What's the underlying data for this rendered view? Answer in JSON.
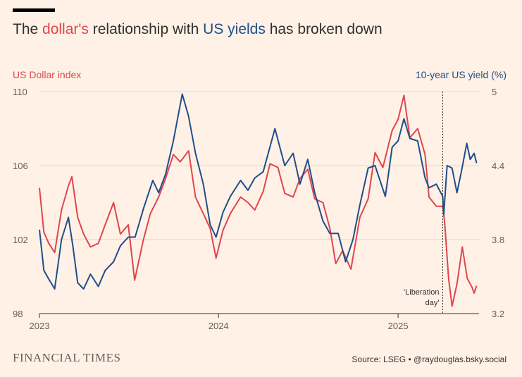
{
  "header": {
    "title_pre": "The ",
    "title_dollar": "dollar's",
    "title_mid": " relationship with ",
    "title_us": "US yields",
    "title_post": " has broken down"
  },
  "footer": {
    "brand": "FINANCIAL TIMES",
    "source": "Source: LSEG • @raydouglas.bsky.social"
  },
  "colors": {
    "dollar": "#e0454f",
    "yield": "#1f4e8c",
    "background": "#fff1e5",
    "grid": "#e2d7cc",
    "axis": "#33302e"
  },
  "chart_data": {
    "type": "line",
    "left_axis": {
      "label": "US Dollar index",
      "range": [
        98,
        110
      ],
      "ticks": [
        "98",
        "102",
        "106",
        "110"
      ]
    },
    "right_axis": {
      "label": "10-year US yield (%)",
      "range": [
        3.2,
        5.0
      ],
      "ticks": [
        "3.2",
        "3.8",
        "4.4",
        "5"
      ]
    },
    "x_axis": {
      "range": [
        "2023-01-01",
        "2025-06-15"
      ],
      "ticks": [
        "2023",
        "2024",
        "2025"
      ]
    },
    "grid": true,
    "annotation": {
      "date": "2025-04-02",
      "text_line1": "'Liberation",
      "text_line2": "day'"
    },
    "series": [
      {
        "name": "US Dollar index",
        "axis": "left",
        "points": [
          [
            "2023-01-01",
            104.8
          ],
          [
            "2023-01-10",
            102.4
          ],
          [
            "2023-01-20",
            101.8
          ],
          [
            "2023-02-01",
            101.3
          ],
          [
            "2023-02-15",
            103.6
          ],
          [
            "2023-03-01",
            104.9
          ],
          [
            "2023-03-08",
            105.4
          ],
          [
            "2023-03-20",
            103.2
          ],
          [
            "2023-04-01",
            102.3
          ],
          [
            "2023-04-15",
            101.6
          ],
          [
            "2023-05-01",
            101.8
          ],
          [
            "2023-05-15",
            102.8
          ],
          [
            "2023-06-01",
            104.0
          ],
          [
            "2023-06-15",
            102.3
          ],
          [
            "2023-07-01",
            102.8
          ],
          [
            "2023-07-14",
            99.8
          ],
          [
            "2023-08-01",
            102.0
          ],
          [
            "2023-08-15",
            103.4
          ],
          [
            "2023-09-01",
            104.3
          ],
          [
            "2023-09-15",
            105.3
          ],
          [
            "2023-10-01",
            106.6
          ],
          [
            "2023-10-15",
            106.2
          ],
          [
            "2023-11-01",
            106.8
          ],
          [
            "2023-11-15",
            104.3
          ],
          [
            "2023-12-01",
            103.4
          ],
          [
            "2023-12-15",
            102.6
          ],
          [
            "2023-12-27",
            101.0
          ],
          [
            "2024-01-10",
            102.5
          ],
          [
            "2024-01-25",
            103.4
          ],
          [
            "2024-02-15",
            104.3
          ],
          [
            "2024-03-01",
            104.0
          ],
          [
            "2024-03-15",
            103.6
          ],
          [
            "2024-04-01",
            104.6
          ],
          [
            "2024-04-15",
            106.1
          ],
          [
            "2024-05-01",
            105.9
          ],
          [
            "2024-05-15",
            104.5
          ],
          [
            "2024-06-01",
            104.3
          ],
          [
            "2024-06-15",
            105.3
          ],
          [
            "2024-07-01",
            105.8
          ],
          [
            "2024-07-15",
            104.2
          ],
          [
            "2024-08-01",
            104.0
          ],
          [
            "2024-08-15",
            102.6
          ],
          [
            "2024-08-27",
            100.7
          ],
          [
            "2024-09-10",
            101.4
          ],
          [
            "2024-09-27",
            100.4
          ],
          [
            "2024-10-15",
            103.2
          ],
          [
            "2024-11-01",
            104.2
          ],
          [
            "2024-11-15",
            106.7
          ],
          [
            "2024-12-01",
            105.9
          ],
          [
            "2024-12-20",
            107.9
          ],
          [
            "2025-01-01",
            108.5
          ],
          [
            "2025-01-13",
            109.8
          ],
          [
            "2025-01-25",
            107.5
          ],
          [
            "2025-02-10",
            108.0
          ],
          [
            "2025-02-25",
            106.6
          ],
          [
            "2025-03-05",
            104.3
          ],
          [
            "2025-03-20",
            103.8
          ],
          [
            "2025-04-02",
            103.8
          ],
          [
            "2025-04-06",
            102.9
          ],
          [
            "2025-04-14",
            99.9
          ],
          [
            "2025-04-21",
            98.4
          ],
          [
            "2025-05-01",
            99.6
          ],
          [
            "2025-05-12",
            101.6
          ],
          [
            "2025-05-22",
            99.9
          ],
          [
            "2025-06-01",
            99.4
          ],
          [
            "2025-06-05",
            99.1
          ],
          [
            "2025-06-10",
            99.5
          ]
        ]
      },
      {
        "name": "10-year US yield (%)",
        "axis": "right",
        "points": [
          [
            "2023-01-01",
            3.88
          ],
          [
            "2023-01-10",
            3.55
          ],
          [
            "2023-01-20",
            3.48
          ],
          [
            "2023-02-01",
            3.4
          ],
          [
            "2023-02-15",
            3.8
          ],
          [
            "2023-03-01",
            3.98
          ],
          [
            "2023-03-10",
            3.75
          ],
          [
            "2023-03-20",
            3.45
          ],
          [
            "2023-04-01",
            3.4
          ],
          [
            "2023-04-15",
            3.52
          ],
          [
            "2023-05-01",
            3.42
          ],
          [
            "2023-05-15",
            3.55
          ],
          [
            "2023-06-01",
            3.62
          ],
          [
            "2023-06-15",
            3.75
          ],
          [
            "2023-07-01",
            3.82
          ],
          [
            "2023-07-15",
            3.82
          ],
          [
            "2023-08-01",
            4.05
          ],
          [
            "2023-08-20",
            4.28
          ],
          [
            "2023-09-01",
            4.18
          ],
          [
            "2023-09-15",
            4.33
          ],
          [
            "2023-10-01",
            4.6
          ],
          [
            "2023-10-19",
            4.98
          ],
          [
            "2023-11-01",
            4.8
          ],
          [
            "2023-11-15",
            4.5
          ],
          [
            "2023-12-01",
            4.25
          ],
          [
            "2023-12-15",
            3.92
          ],
          [
            "2023-12-27",
            3.82
          ],
          [
            "2024-01-10",
            4.02
          ],
          [
            "2024-01-25",
            4.15
          ],
          [
            "2024-02-15",
            4.28
          ],
          [
            "2024-03-01",
            4.2
          ],
          [
            "2024-03-15",
            4.3
          ],
          [
            "2024-04-01",
            4.35
          ],
          [
            "2024-04-25",
            4.7
          ],
          [
            "2024-05-15",
            4.4
          ],
          [
            "2024-06-01",
            4.5
          ],
          [
            "2024-06-15",
            4.25
          ],
          [
            "2024-07-01",
            4.45
          ],
          [
            "2024-07-15",
            4.18
          ],
          [
            "2024-08-01",
            3.95
          ],
          [
            "2024-08-15",
            3.85
          ],
          [
            "2024-09-01",
            3.85
          ],
          [
            "2024-09-16",
            3.62
          ],
          [
            "2024-10-01",
            3.8
          ],
          [
            "2024-10-15",
            4.08
          ],
          [
            "2024-11-01",
            4.38
          ],
          [
            "2024-11-15",
            4.4
          ],
          [
            "2024-12-06",
            4.15
          ],
          [
            "2024-12-20",
            4.55
          ],
          [
            "2025-01-01",
            4.6
          ],
          [
            "2025-01-13",
            4.78
          ],
          [
            "2025-01-25",
            4.62
          ],
          [
            "2025-02-10",
            4.6
          ],
          [
            "2025-02-25",
            4.3
          ],
          [
            "2025-03-05",
            4.22
          ],
          [
            "2025-03-20",
            4.25
          ],
          [
            "2025-04-02",
            4.15
          ],
          [
            "2025-04-04",
            4.0
          ],
          [
            "2025-04-11",
            4.4
          ],
          [
            "2025-04-21",
            4.38
          ],
          [
            "2025-05-01",
            4.18
          ],
          [
            "2025-05-10",
            4.35
          ],
          [
            "2025-05-21",
            4.58
          ],
          [
            "2025-05-28",
            4.45
          ],
          [
            "2025-06-05",
            4.5
          ],
          [
            "2025-06-10",
            4.42
          ]
        ]
      }
    ]
  }
}
